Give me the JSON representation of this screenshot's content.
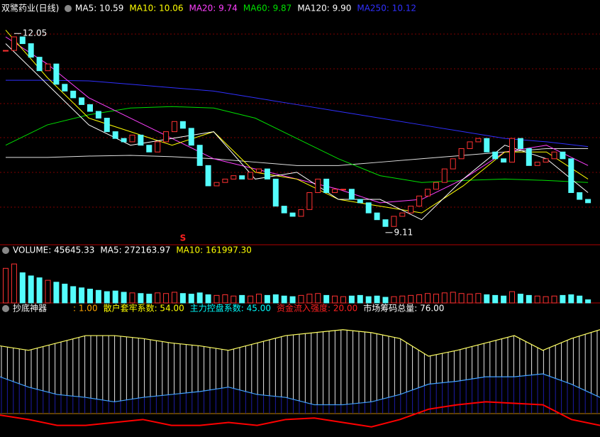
{
  "header": {
    "title": "双鹭药业(日线)",
    "readouts": [
      {
        "text": "MA5: 10.59",
        "color": "#ffffff"
      },
      {
        "text": "MA10: 10.06",
        "color": "#ffff00"
      },
      {
        "text": "MA20: 9.74",
        "color": "#ff40ff"
      },
      {
        "text": "MA60: 9.87",
        "color": "#00e000"
      },
      {
        "text": "MA120: 9.90",
        "color": "#ffffff"
      },
      {
        "text": "MA250: 10.12",
        "color": "#3030ff"
      }
    ]
  },
  "price_panel": {
    "ylim": [
      8.93,
      12.44
    ],
    "high": 12.05,
    "low": 9.11,
    "signal": "S",
    "closes": [
      11.8,
      12.0,
      11.9,
      11.7,
      11.5,
      11.6,
      11.3,
      11.2,
      11.1,
      11.0,
      10.9,
      10.8,
      10.6,
      10.5,
      10.45,
      10.55,
      10.4,
      10.3,
      10.45,
      10.6,
      10.75,
      10.65,
      10.4,
      10.1,
      9.8,
      9.85,
      9.9,
      9.95,
      9.9,
      10.0,
      10.05,
      9.9,
      9.5,
      9.4,
      9.35,
      9.45,
      9.7,
      9.9,
      9.7,
      9.75,
      9.75,
      9.6,
      9.55,
      9.4,
      9.3,
      9.2,
      9.35,
      9.4,
      9.5,
      9.65,
      9.75,
      9.85,
      10.05,
      10.2,
      10.35,
      10.45,
      10.5,
      10.3,
      10.2,
      10.15,
      10.5,
      10.35,
      10.1,
      10.15,
      10.2,
      10.3,
      10.2,
      9.7,
      9.6,
      9.55
    ],
    "ma_lines": [
      {
        "color": "#3030ff",
        "values": [
          11.36,
          11.36,
          11.35,
          11.3,
          11.25,
          11.2,
          11.1,
          11.0,
          10.9,
          10.8,
          10.7,
          10.6,
          10.5,
          10.45,
          10.38
        ]
      },
      {
        "color": "#e0e0e0",
        "values": [
          10.22,
          10.22,
          10.24,
          10.25,
          10.23,
          10.2,
          10.15,
          10.1,
          10.1,
          10.15,
          10.2,
          10.25,
          10.3,
          10.35,
          10.35
        ]
      },
      {
        "color": "#00e000",
        "values": [
          10.4,
          10.7,
          10.85,
          10.95,
          10.97,
          10.95,
          10.8,
          10.5,
          10.2,
          9.95,
          9.85,
          9.88,
          9.9,
          9.88,
          9.85
        ]
      },
      {
        "color": "#ff40ff",
        "values": [
          12.0,
          11.6,
          11.1,
          10.8,
          10.5,
          10.2,
          10.05,
          9.9,
          9.75,
          9.55,
          9.6,
          9.9,
          10.3,
          10.4,
          10.1
        ]
      },
      {
        "color": "#ffff00",
        "values": [
          12.1,
          11.4,
          10.8,
          10.6,
          10.4,
          10.6,
          10.0,
          9.9,
          9.6,
          9.5,
          9.4,
          9.8,
          10.3,
          10.3,
          9.9
        ]
      },
      {
        "color": "#ffffff",
        "values": [
          11.9,
          11.3,
          10.7,
          10.4,
          10.5,
          10.6,
          9.9,
          10.0,
          9.6,
          9.6,
          9.3,
          9.9,
          10.4,
          10.2,
          9.7
        ]
      }
    ]
  },
  "volume_panel": {
    "readouts": [
      {
        "text": "VOLUME: 45645.33",
        "color": "#ffffff"
      },
      {
        "text": "MA5: 272163.97",
        "color": "#ffffff"
      },
      {
        "text": "MA10: 161997.30",
        "color": "#ffff00"
      }
    ],
    "ylim": [
      0,
      700000
    ],
    "values": [
      550000,
      620000,
      480000,
      430000,
      400000,
      360000,
      330000,
      300000,
      260000,
      240000,
      220000,
      200000,
      180000,
      190000,
      170000,
      160000,
      150000,
      140000,
      160000,
      150000,
      170000,
      150000,
      140000,
      160000,
      130000,
      120000,
      130000,
      110000,
      120000,
      110000,
      140000,
      120000,
      130000,
      110000,
      100000,
      120000,
      140000,
      150000,
      120000,
      110000,
      100000,
      110000,
      120000,
      100000,
      110000,
      90000,
      100000,
      110000,
      120000,
      130000,
      150000,
      140000,
      160000,
      170000,
      150000,
      140000,
      150000,
      130000,
      120000,
      110000,
      180000,
      140000,
      120000,
      110000,
      100000,
      110000,
      120000,
      130000,
      110000,
      50000
    ]
  },
  "indicator_panel": {
    "title": "抄底神器",
    "readouts": [
      {
        "text": ": 1.00",
        "color": "#ffa500"
      },
      {
        "text": "散户套牢系数: 54.00",
        "color": "#ffff00"
      },
      {
        "text": "主力控盘系数: 45.00",
        "color": "#00ffff"
      },
      {
        "text": "资金流入强度: 20.00",
        "color": "#ff2020"
      },
      {
        "text": "市场筹码总量: 76.00",
        "color": "#ffffff"
      }
    ],
    "ylim": [
      0,
      80
    ],
    "series": [
      {
        "color": "#ffff60",
        "values": [
          59,
          56,
          61,
          66,
          66,
          64,
          61,
          59,
          56,
          61,
          66,
          68,
          70,
          68,
          64,
          52,
          56,
          61,
          66,
          56,
          64,
          70
        ]
      },
      {
        "color": "#40a0ff",
        "values": [
          38,
          31,
          26,
          24,
          21,
          24,
          26,
          28,
          31,
          26,
          24,
          19,
          19,
          21,
          26,
          33,
          35,
          38,
          38,
          40,
          33,
          24
        ]
      },
      {
        "color": "#ff0000",
        "values": [
          12,
          9,
          5,
          5,
          7,
          9,
          5,
          5,
          7,
          5,
          9,
          10,
          7,
          4,
          9,
          16,
          19,
          21,
          20,
          19,
          9,
          5
        ]
      }
    ]
  }
}
